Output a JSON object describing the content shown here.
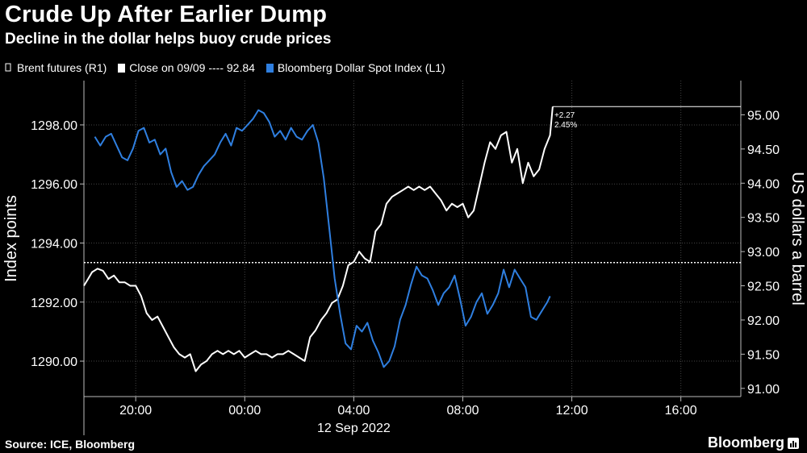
{
  "title": "Crude Up After Earlier Dump",
  "subtitle": "Decline in the dollar helps buoy crude prices",
  "legend": [
    {
      "label": "Brent futures (R1)",
      "color": "#ffffff"
    },
    {
      "label": "Close on 09/09 ---- 92.84",
      "color": "#ffffff"
    },
    {
      "label": "Bloomberg Dollar Spot Index (L1)",
      "color": "#2f7fe0"
    }
  ],
  "source": "Source: ICE, Bloomberg",
  "brand": "Bloomberg",
  "chart_data": {
    "type": "line",
    "x_tick_labels": [
      "20:00",
      "00:00",
      "04:00",
      "08:00",
      "12:00",
      "16:00"
    ],
    "x_tick_hours": [
      20,
      24,
      28,
      32,
      36,
      40
    ],
    "x_range_hours": [
      18.1,
      42.2
    ],
    "x_sublabel": "12 Sep 2022",
    "left_axis": {
      "label": "Index points",
      "range": [
        1288.8,
        1299.5
      ],
      "ticks": [
        1290,
        1292,
        1294,
        1296,
        1298
      ],
      "tick_labels": [
        "1290.00",
        "1292.00",
        "1294.00",
        "1296.00",
        "1298.00"
      ]
    },
    "right_axis": {
      "label": "US dollars a barrel",
      "range": [
        90.88,
        95.5
      ],
      "ticks": [
        91,
        91.5,
        92,
        92.5,
        93,
        93.5,
        94,
        94.5,
        95
      ],
      "tick_labels": [
        "91.00",
        "91.50",
        "92.00",
        "92.50",
        "93.00",
        "93.50",
        "94.00",
        "94.50",
        "95.00"
      ]
    },
    "reference_line": {
      "label": "Close on 09/09",
      "value": 92.84,
      "axis": "right"
    },
    "annotation": {
      "lines": [
        "+2.27",
        "2.45%"
      ],
      "change": 2.27,
      "pct": 2.45
    },
    "series": [
      {
        "name": "Brent futures (R1)",
        "axis": "right",
        "color": "#ffffff",
        "points": [
          [
            18.1,
            92.5
          ],
          [
            18.25,
            92.6
          ],
          [
            18.4,
            92.7
          ],
          [
            18.6,
            92.75
          ],
          [
            18.8,
            92.72
          ],
          [
            19.0,
            92.6
          ],
          [
            19.2,
            92.65
          ],
          [
            19.4,
            92.55
          ],
          [
            19.6,
            92.55
          ],
          [
            19.8,
            92.5
          ],
          [
            20.0,
            92.5
          ],
          [
            20.2,
            92.35
          ],
          [
            20.4,
            92.1
          ],
          [
            20.6,
            92.0
          ],
          [
            20.8,
            92.05
          ],
          [
            21.0,
            91.9
          ],
          [
            21.2,
            91.75
          ],
          [
            21.4,
            91.6
          ],
          [
            21.6,
            91.5
          ],
          [
            21.8,
            91.45
          ],
          [
            22.0,
            91.5
          ],
          [
            22.2,
            91.25
          ],
          [
            22.4,
            91.35
          ],
          [
            22.6,
            91.4
          ],
          [
            22.8,
            91.5
          ],
          [
            23.0,
            91.55
          ],
          [
            23.2,
            91.5
          ],
          [
            23.4,
            91.55
          ],
          [
            23.6,
            91.5
          ],
          [
            23.8,
            91.55
          ],
          [
            24.0,
            91.45
          ],
          [
            24.2,
            91.5
          ],
          [
            24.4,
            91.55
          ],
          [
            24.6,
            91.5
          ],
          [
            24.8,
            91.5
          ],
          [
            25.0,
            91.45
          ],
          [
            25.2,
            91.5
          ],
          [
            25.4,
            91.5
          ],
          [
            25.6,
            91.55
          ],
          [
            25.8,
            91.5
          ],
          [
            26.0,
            91.45
          ],
          [
            26.2,
            91.4
          ],
          [
            26.4,
            91.75
          ],
          [
            26.6,
            91.85
          ],
          [
            26.8,
            92.0
          ],
          [
            27.0,
            92.1
          ],
          [
            27.2,
            92.25
          ],
          [
            27.4,
            92.3
          ],
          [
            27.6,
            92.5
          ],
          [
            27.8,
            92.8
          ],
          [
            28.0,
            92.85
          ],
          [
            28.2,
            93.0
          ],
          [
            28.4,
            92.9
          ],
          [
            28.6,
            92.85
          ],
          [
            28.8,
            93.3
          ],
          [
            29.0,
            93.4
          ],
          [
            29.2,
            93.7
          ],
          [
            29.4,
            93.8
          ],
          [
            29.6,
            93.85
          ],
          [
            29.8,
            93.9
          ],
          [
            30.0,
            93.95
          ],
          [
            30.2,
            93.9
          ],
          [
            30.4,
            93.95
          ],
          [
            30.6,
            93.9
          ],
          [
            30.8,
            93.95
          ],
          [
            31.0,
            93.85
          ],
          [
            31.2,
            93.75
          ],
          [
            31.4,
            93.6
          ],
          [
            31.6,
            93.7
          ],
          [
            31.8,
            93.65
          ],
          [
            32.0,
            93.7
          ],
          [
            32.2,
            93.5
          ],
          [
            32.4,
            93.6
          ],
          [
            32.6,
            93.95
          ],
          [
            32.8,
            94.3
          ],
          [
            33.0,
            94.6
          ],
          [
            33.2,
            94.5
          ],
          [
            33.4,
            94.7
          ],
          [
            33.6,
            94.75
          ],
          [
            33.8,
            94.3
          ],
          [
            34.0,
            94.5
          ],
          [
            34.2,
            94.0
          ],
          [
            34.4,
            94.3
          ],
          [
            34.6,
            94.1
          ],
          [
            34.8,
            94.2
          ],
          [
            35.0,
            94.5
          ],
          [
            35.2,
            94.7
          ],
          [
            35.3,
            95.12
          ]
        ]
      },
      {
        "name": "Bloomberg Dollar Spot Index (L1)",
        "axis": "left",
        "color": "#2f7fe0",
        "points": [
          [
            18.5,
            1297.6
          ],
          [
            18.7,
            1297.3
          ],
          [
            18.9,
            1297.6
          ],
          [
            19.1,
            1297.7
          ],
          [
            19.3,
            1297.3
          ],
          [
            19.5,
            1296.9
          ],
          [
            19.7,
            1296.8
          ],
          [
            19.9,
            1297.2
          ],
          [
            20.1,
            1297.8
          ],
          [
            20.3,
            1297.9
          ],
          [
            20.5,
            1297.4
          ],
          [
            20.7,
            1297.5
          ],
          [
            20.9,
            1297.0
          ],
          [
            21.1,
            1297.2
          ],
          [
            21.3,
            1296.4
          ],
          [
            21.5,
            1295.9
          ],
          [
            21.7,
            1296.1
          ],
          [
            21.9,
            1295.8
          ],
          [
            22.1,
            1295.9
          ],
          [
            22.3,
            1296.3
          ],
          [
            22.5,
            1296.6
          ],
          [
            22.7,
            1296.8
          ],
          [
            22.9,
            1297.0
          ],
          [
            23.1,
            1297.4
          ],
          [
            23.3,
            1297.7
          ],
          [
            23.5,
            1297.3
          ],
          [
            23.7,
            1297.9
          ],
          [
            23.9,
            1297.8
          ],
          [
            24.1,
            1298.0
          ],
          [
            24.3,
            1298.2
          ],
          [
            24.5,
            1298.5
          ],
          [
            24.7,
            1298.4
          ],
          [
            24.9,
            1298.1
          ],
          [
            25.1,
            1297.6
          ],
          [
            25.3,
            1297.8
          ],
          [
            25.5,
            1297.5
          ],
          [
            25.7,
            1297.9
          ],
          [
            25.9,
            1297.6
          ],
          [
            26.1,
            1297.5
          ],
          [
            26.3,
            1297.8
          ],
          [
            26.5,
            1298.0
          ],
          [
            26.7,
            1297.4
          ],
          [
            26.9,
            1296.2
          ],
          [
            27.1,
            1294.5
          ],
          [
            27.3,
            1292.8
          ],
          [
            27.5,
            1291.6
          ],
          [
            27.7,
            1290.6
          ],
          [
            27.9,
            1290.4
          ],
          [
            28.1,
            1291.2
          ],
          [
            28.3,
            1291.0
          ],
          [
            28.5,
            1291.3
          ],
          [
            28.7,
            1290.7
          ],
          [
            28.9,
            1290.3
          ],
          [
            29.1,
            1289.8
          ],
          [
            29.3,
            1290.0
          ],
          [
            29.5,
            1290.5
          ],
          [
            29.7,
            1291.4
          ],
          [
            29.9,
            1291.9
          ],
          [
            30.1,
            1292.6
          ],
          [
            30.3,
            1293.2
          ],
          [
            30.5,
            1292.9
          ],
          [
            30.7,
            1292.8
          ],
          [
            30.9,
            1292.4
          ],
          [
            31.1,
            1291.9
          ],
          [
            31.3,
            1292.3
          ],
          [
            31.5,
            1292.5
          ],
          [
            31.7,
            1292.9
          ],
          [
            31.9,
            1292.1
          ],
          [
            32.1,
            1291.2
          ],
          [
            32.3,
            1291.5
          ],
          [
            32.5,
            1292.0
          ],
          [
            32.7,
            1292.3
          ],
          [
            32.9,
            1291.6
          ],
          [
            33.1,
            1291.9
          ],
          [
            33.3,
            1292.3
          ],
          [
            33.5,
            1293.1
          ],
          [
            33.7,
            1292.5
          ],
          [
            33.9,
            1293.1
          ],
          [
            34.1,
            1292.8
          ],
          [
            34.3,
            1292.5
          ],
          [
            34.5,
            1291.5
          ],
          [
            34.7,
            1291.4
          ],
          [
            34.9,
            1291.7
          ],
          [
            35.1,
            1292.0
          ],
          [
            35.2,
            1292.2
          ]
        ]
      }
    ]
  }
}
